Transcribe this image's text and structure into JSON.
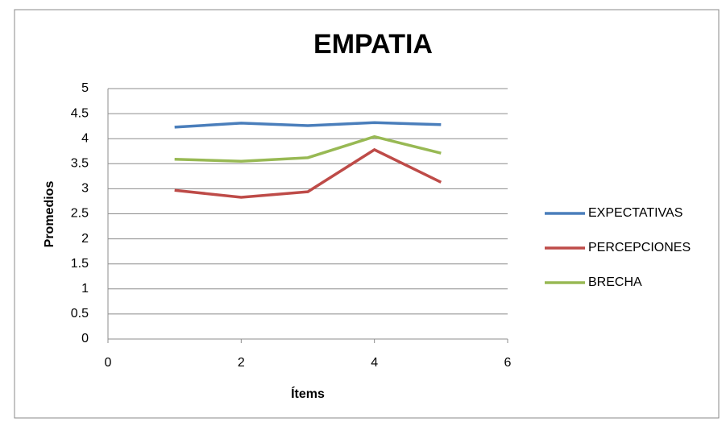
{
  "chart_data": {
    "type": "line",
    "title": "EMPATIA",
    "x_label": "Ítems",
    "y_label": "Promedios",
    "x": [
      1,
      2,
      3,
      4,
      5
    ],
    "series": [
      {
        "name": "EXPECTATIVAS",
        "color": "#4a7ebb",
        "values": [
          4.23,
          4.31,
          4.26,
          4.32,
          4.28
        ]
      },
      {
        "name": "PERCEPCIONES",
        "color": "#be4b48",
        "values": [
          2.97,
          2.83,
          2.94,
          3.78,
          3.13
        ]
      },
      {
        "name": "BRECHA",
        "color": "#98b954",
        "values": [
          3.59,
          3.55,
          3.62,
          4.04,
          3.71
        ]
      }
    ],
    "xlim": [
      0,
      6
    ],
    "xticks": [
      0,
      2,
      4,
      6
    ],
    "ylim": [
      0,
      5
    ],
    "yticks": [
      0,
      0.5,
      1,
      1.5,
      2,
      2.5,
      3,
      3.5,
      4,
      4.5,
      5
    ],
    "grid": true,
    "legend": "right"
  }
}
